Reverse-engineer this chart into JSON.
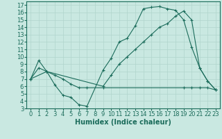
{
  "xlabel": "Humidex (Indice chaleur)",
  "background_color": "#c9e8e1",
  "line_color": "#1a6b5a",
  "grid_color": "#b0d5cc",
  "xlim": [
    -0.5,
    23.5
  ],
  "ylim": [
    3,
    17.5
  ],
  "xticks": [
    0,
    1,
    2,
    3,
    4,
    5,
    6,
    7,
    8,
    9,
    10,
    11,
    12,
    13,
    14,
    15,
    16,
    17,
    18,
    19,
    20,
    21,
    22,
    23
  ],
  "yticks": [
    3,
    4,
    5,
    6,
    7,
    8,
    9,
    10,
    11,
    12,
    13,
    14,
    15,
    16,
    17
  ],
  "line1_x": [
    0,
    1,
    2,
    3,
    4,
    5,
    6,
    7,
    9,
    10,
    11,
    12,
    13,
    14,
    15,
    16,
    17,
    18,
    19,
    20,
    21,
    22,
    23
  ],
  "line1_y": [
    7.0,
    9.5,
    8.0,
    6.2,
    4.8,
    4.5,
    3.5,
    3.3,
    8.2,
    9.8,
    12.0,
    12.5,
    14.2,
    16.5,
    16.7,
    16.8,
    16.5,
    16.3,
    15.0,
    11.3,
    8.5,
    6.7,
    5.5
  ],
  "line2_x": [
    0,
    1,
    2,
    9,
    10,
    11,
    12,
    13,
    14,
    15,
    16,
    17,
    18,
    19,
    20,
    21,
    22,
    23
  ],
  "line2_y": [
    7.0,
    8.5,
    8.0,
    6.0,
    7.5,
    9.0,
    10.0,
    11.0,
    12.0,
    13.0,
    14.0,
    14.5,
    15.5,
    16.2,
    15.0,
    8.5,
    6.7,
    5.5
  ],
  "line3_x": [
    0,
    2,
    3,
    4,
    5,
    6,
    7,
    9,
    19,
    20,
    21,
    22,
    23
  ],
  "line3_y": [
    7.0,
    8.0,
    7.5,
    7.0,
    6.3,
    5.8,
    5.8,
    5.8,
    5.8,
    5.8,
    5.8,
    5.8,
    5.5
  ],
  "font_size": 6,
  "xlabel_fontsize": 7,
  "marker": "+"
}
